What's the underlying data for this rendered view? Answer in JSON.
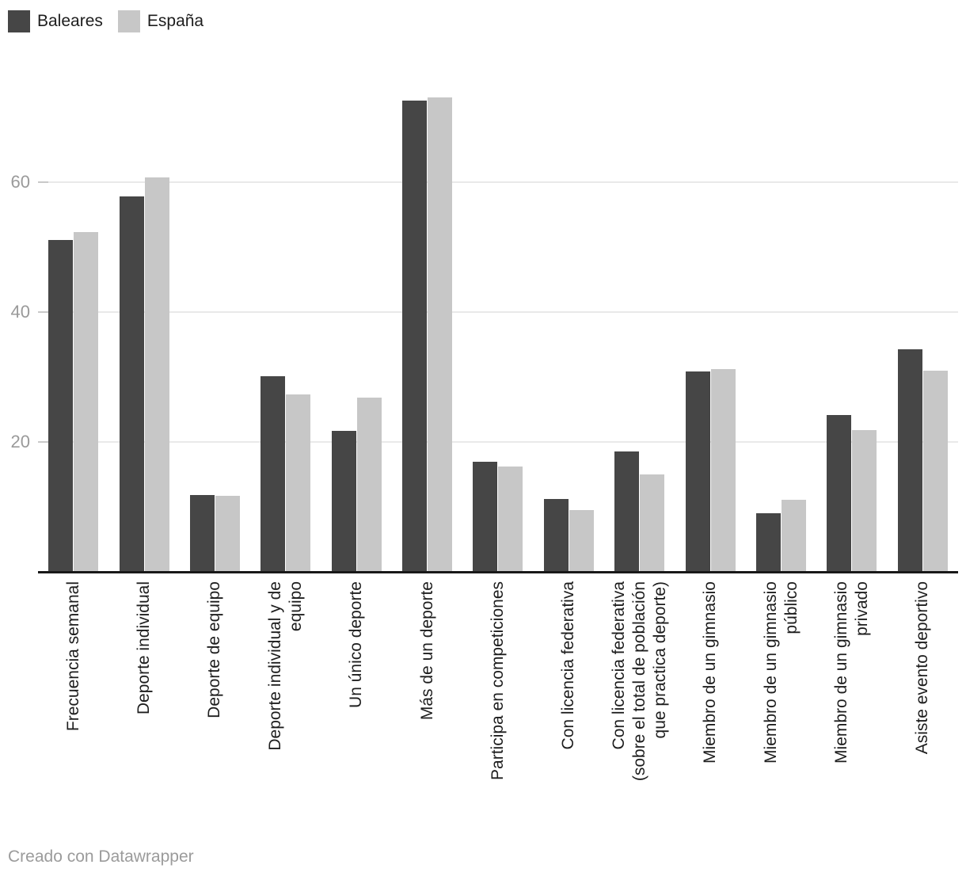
{
  "legend": {
    "items": [
      {
        "label": "Baleares",
        "color": "#464646"
      },
      {
        "label": "España",
        "color": "#c7c7c7"
      }
    ]
  },
  "chart_data": {
    "type": "bar",
    "title": "",
    "xlabel": "",
    "ylabel": "",
    "grid": "horizontal",
    "legend_position": "top-left",
    "ylim": [
      0,
      77
    ],
    "y_ticks": [
      20,
      40,
      60
    ],
    "categories": [
      "Frecuencia semanal",
      "Deporte individual",
      "Deporte de equipo",
      "Deporte individual y de equipo",
      "Un único deporte",
      "Más de un deporte",
      "Participa en competiciones",
      "Con licencia federativa",
      "Con licencia federativa (sobre el total de población que practica deporte)",
      "Miembro de un gimnasio",
      "Miembro de un gimnasio público",
      "Miembro de un gimnasio privado",
      "Asiste evento deportivo"
    ],
    "category_lines": [
      [
        "Frecuencia semanal"
      ],
      [
        "Deporte individual"
      ],
      [
        "Deporte de equipo"
      ],
      [
        "Deporte individual y de",
        "equipo"
      ],
      [
        "Un único deporte"
      ],
      [
        "Más de un deporte"
      ],
      [
        "Participa en competiciones"
      ],
      [
        "Con licencia federativa"
      ],
      [
        "Con licencia federativa",
        "(sobre el total de población",
        "que practica deporte)"
      ],
      [
        "Miembro de un gimnasio"
      ],
      [
        "Miembro de un gimnasio",
        "público"
      ],
      [
        "Miembro de un gimnasio",
        "privado"
      ],
      [
        "Asiste evento deportivo"
      ]
    ],
    "series": [
      {
        "name": "Baleares",
        "color": "#464646",
        "values": [
          51.1,
          57.8,
          11.8,
          30.1,
          21.7,
          72.5,
          17.0,
          11.2,
          18.5,
          30.8,
          9.0,
          24.2,
          34.3
        ]
      },
      {
        "name": "España",
        "color": "#c7c7c7",
        "values": [
          52.3,
          60.7,
          11.7,
          27.3,
          26.8,
          73.0,
          16.2,
          9.5,
          15.0,
          31.2,
          11.1,
          21.8,
          31.0
        ]
      }
    ]
  },
  "colors": {
    "background": "#ffffff",
    "axis_line": "#191919",
    "gridline": "#e9e9e9",
    "tick_mark": "#c9c9c9",
    "y_tick_label": "#9a9a9a",
    "x_label": "#1d1d1d",
    "footer_text": "#9b9b9b"
  },
  "footer": {
    "text": "Creado con Datawrapper"
  }
}
